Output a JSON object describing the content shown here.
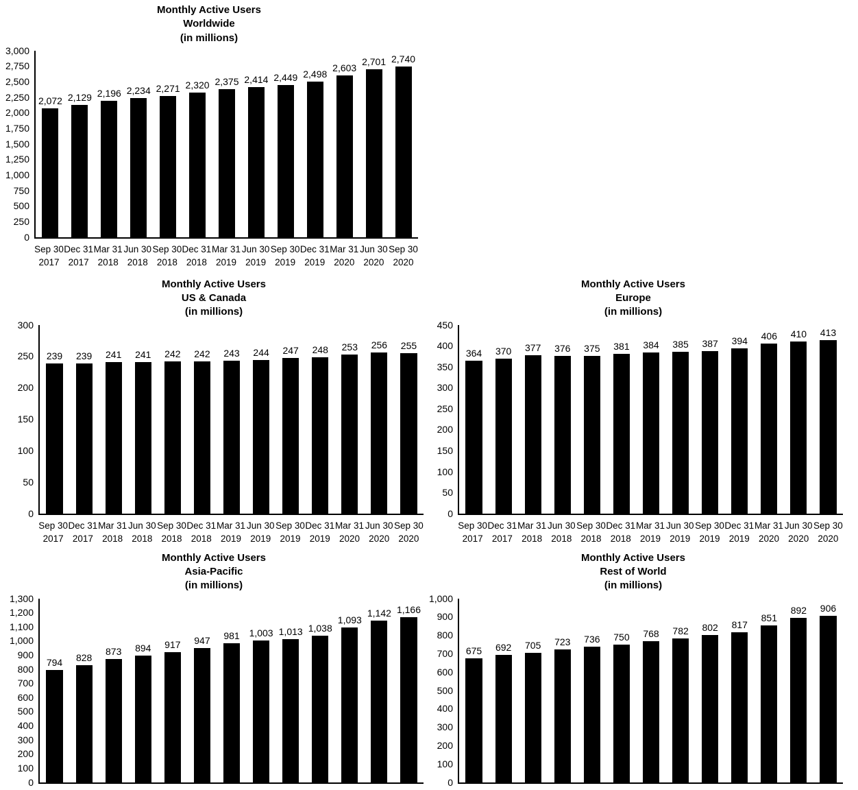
{
  "page": {
    "description": "Five bar charts of Monthly Active Users by region"
  },
  "chart_data": [
    {
      "type": "bar",
      "title": "Monthly Active Users Worldwide (in millions)",
      "title_lines": [
        "Monthly Active Users",
        "Worldwide",
        "(in millions)"
      ],
      "categories": [
        [
          "Sep 30",
          "2017"
        ],
        [
          "Dec 31",
          "2017"
        ],
        [
          "Mar 31",
          "2018"
        ],
        [
          "Jun 30",
          "2018"
        ],
        [
          "Sep 30",
          "2018"
        ],
        [
          "Dec 31",
          "2018"
        ],
        [
          "Mar 31",
          "2019"
        ],
        [
          "Jun 30",
          "2019"
        ],
        [
          "Sep 30",
          "2019"
        ],
        [
          "Dec 31",
          "2019"
        ],
        [
          "Mar 31",
          "2020"
        ],
        [
          "Jun 30",
          "2020"
        ],
        [
          "Sep 30",
          "2020"
        ]
      ],
      "values": [
        2072,
        2129,
        2196,
        2234,
        2271,
        2320,
        2375,
        2414,
        2449,
        2498,
        2603,
        2701,
        2740
      ],
      "xlabel": "",
      "ylabel": "",
      "ylim": [
        0,
        3000
      ],
      "ystep": 250,
      "grid": false,
      "legend": null,
      "bar_color": "#000000"
    },
    {
      "type": "bar",
      "title": "Monthly Active Users US & Canada (in millions)",
      "title_lines": [
        "Monthly Active Users",
        "US & Canada",
        "(in millions)"
      ],
      "categories": [
        [
          "Sep 30",
          "2017"
        ],
        [
          "Dec 31",
          "2017"
        ],
        [
          "Mar 31",
          "2018"
        ],
        [
          "Jun 30",
          "2018"
        ],
        [
          "Sep 30",
          "2018"
        ],
        [
          "Dec 31",
          "2018"
        ],
        [
          "Mar 31",
          "2019"
        ],
        [
          "Jun 30",
          "2019"
        ],
        [
          "Sep 30",
          "2019"
        ],
        [
          "Dec 31",
          "2019"
        ],
        [
          "Mar 31",
          "2020"
        ],
        [
          "Jun 30",
          "2020"
        ],
        [
          "Sep 30",
          "2020"
        ]
      ],
      "values": [
        239,
        239,
        241,
        241,
        242,
        242,
        243,
        244,
        247,
        248,
        253,
        256,
        255
      ],
      "xlabel": "",
      "ylabel": "",
      "ylim": [
        0,
        300
      ],
      "ystep": 50,
      "grid": false,
      "legend": null,
      "bar_color": "#000000"
    },
    {
      "type": "bar",
      "title": "Monthly Active Users Europe (in millions)",
      "title_lines": [
        "Monthly Active Users",
        "Europe",
        "(in millions)"
      ],
      "categories": [
        [
          "Sep 30",
          "2017"
        ],
        [
          "Dec 31",
          "2017"
        ],
        [
          "Mar 31",
          "2018"
        ],
        [
          "Jun 30",
          "2018"
        ],
        [
          "Sep 30",
          "2018"
        ],
        [
          "Dec 31",
          "2018"
        ],
        [
          "Mar 31",
          "2019"
        ],
        [
          "Jun 30",
          "2019"
        ],
        [
          "Sep 30",
          "2019"
        ],
        [
          "Dec 31",
          "2019"
        ],
        [
          "Mar 31",
          "2020"
        ],
        [
          "Jun 30",
          "2020"
        ],
        [
          "Sep 30",
          "2020"
        ]
      ],
      "values": [
        364,
        370,
        377,
        376,
        375,
        381,
        384,
        385,
        387,
        394,
        406,
        410,
        413
      ],
      "xlabel": "",
      "ylabel": "",
      "ylim": [
        0,
        450
      ],
      "ystep": 50,
      "grid": false,
      "legend": null,
      "bar_color": "#000000"
    },
    {
      "type": "bar",
      "title": "Monthly Active Users Asia-Pacific (in millions)",
      "title_lines": [
        "Monthly Active Users",
        "Asia-Pacific",
        "(in millions)"
      ],
      "categories": [
        [
          "Sep 30",
          "2017"
        ],
        [
          "Dec 31",
          "2017"
        ],
        [
          "Mar 31",
          "2018"
        ],
        [
          "Jun 30",
          "2018"
        ],
        [
          "Sep 30",
          "2018"
        ],
        [
          "Dec 31",
          "2018"
        ],
        [
          "Mar 31",
          "2019"
        ],
        [
          "Jun 30",
          "2019"
        ],
        [
          "Sep 30",
          "2019"
        ],
        [
          "Dec 31",
          "2019"
        ],
        [
          "Mar 31",
          "2020"
        ],
        [
          "Jun 30",
          "2020"
        ],
        [
          "Sep 30",
          "2020"
        ]
      ],
      "values": [
        794,
        828,
        873,
        894,
        917,
        947,
        981,
        1003,
        1013,
        1038,
        1093,
        1142,
        1166
      ],
      "xlabel": "",
      "ylabel": "",
      "ylim": [
        0,
        1300
      ],
      "ystep": 100,
      "grid": false,
      "legend": null,
      "bar_color": "#000000"
    },
    {
      "type": "bar",
      "title": "Monthly Active Users Rest of World (in millions)",
      "title_lines": [
        "Monthly Active Users",
        "Rest of World",
        "(in millions)"
      ],
      "categories": [
        [
          "Sep 30",
          "2017"
        ],
        [
          "Dec 31",
          "2017"
        ],
        [
          "Mar 31",
          "2018"
        ],
        [
          "Jun 30",
          "2018"
        ],
        [
          "Sep 30",
          "2018"
        ],
        [
          "Dec 31",
          "2018"
        ],
        [
          "Mar 31",
          "2019"
        ],
        [
          "Jun 30",
          "2019"
        ],
        [
          "Sep 30",
          "2019"
        ],
        [
          "Dec 31",
          "2019"
        ],
        [
          "Mar 31",
          "2020"
        ],
        [
          "Jun 30",
          "2020"
        ],
        [
          "Sep 30",
          "2020"
        ]
      ],
      "values": [
        675,
        692,
        705,
        723,
        736,
        750,
        768,
        782,
        802,
        817,
        851,
        892,
        906
      ],
      "xlabel": "",
      "ylabel": "",
      "ylim": [
        0,
        1000
      ],
      "ystep": 100,
      "grid": false,
      "legend": null,
      "bar_color": "#000000"
    }
  ]
}
